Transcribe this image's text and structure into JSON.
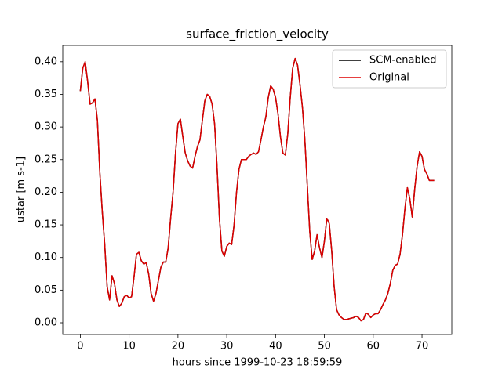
{
  "chart_data": {
    "type": "line",
    "title": "surface_friction_velocity",
    "xlabel": "hours since 1999-10-23 18:59:59",
    "ylabel": "ustar [m s-1]",
    "x": [
      0,
      0.5,
      1,
      1.5,
      2,
      2.5,
      3,
      3.5,
      4,
      4.5,
      5,
      5.5,
      6,
      6.5,
      7,
      7.5,
      8,
      8.5,
      9,
      9.5,
      10,
      10.5,
      11,
      11.5,
      12,
      12.5,
      13,
      13.5,
      14,
      14.5,
      15,
      15.5,
      16,
      16.5,
      17,
      17.5,
      18,
      18.5,
      19,
      19.5,
      20,
      20.5,
      21,
      21.5,
      22,
      22.5,
      23,
      23.5,
      24,
      24.5,
      25,
      25.5,
      26,
      26.5,
      27,
      27.5,
      28,
      28.5,
      29,
      29.5,
      30,
      30.5,
      31,
      31.5,
      32,
      32.5,
      33,
      33.5,
      34,
      34.5,
      35,
      35.5,
      36,
      36.5,
      37,
      37.5,
      38,
      38.5,
      39,
      39.5,
      40,
      40.5,
      41,
      41.5,
      42,
      42.5,
      43,
      43.5,
      44,
      44.5,
      45,
      45.5,
      46,
      46.5,
      47,
      47.5,
      48,
      48.5,
      49,
      49.5,
      50,
      50.5,
      51,
      51.5,
      52,
      52.5,
      53,
      53.5,
      54,
      54.5,
      55,
      55.5,
      56,
      56.5,
      57,
      57.5,
      58,
      58.5,
      59,
      59.5,
      60,
      60.5,
      61,
      61.5,
      62,
      62.5,
      63,
      63.5,
      64,
      64.5,
      65,
      65.5,
      66,
      66.5,
      67,
      67.5,
      68,
      68.5,
      69,
      69.5,
      70,
      70.5,
      71,
      71.5,
      72,
      72.5
    ],
    "series": [
      {
        "name": "SCM-enabled",
        "color": "#000000",
        "values": [
          0.355,
          0.39,
          0.4,
          0.37,
          0.335,
          0.337,
          0.343,
          0.31,
          0.23,
          0.17,
          0.12,
          0.055,
          0.035,
          0.072,
          0.06,
          0.035,
          0.025,
          0.03,
          0.04,
          0.042,
          0.038,
          0.04,
          0.07,
          0.105,
          0.108,
          0.095,
          0.09,
          0.092,
          0.075,
          0.045,
          0.033,
          0.045,
          0.065,
          0.085,
          0.093,
          0.093,
          0.115,
          0.16,
          0.2,
          0.26,
          0.305,
          0.312,
          0.285,
          0.26,
          0.248,
          0.24,
          0.237,
          0.255,
          0.27,
          0.28,
          0.31,
          0.34,
          0.35,
          0.347,
          0.335,
          0.305,
          0.24,
          0.16,
          0.11,
          0.102,
          0.117,
          0.122,
          0.12,
          0.15,
          0.2,
          0.235,
          0.25,
          0.25,
          0.25,
          0.255,
          0.258,
          0.26,
          0.258,
          0.262,
          0.28,
          0.3,
          0.315,
          0.345,
          0.363,
          0.358,
          0.345,
          0.32,
          0.285,
          0.26,
          0.257,
          0.29,
          0.345,
          0.39,
          0.405,
          0.395,
          0.365,
          0.33,
          0.28,
          0.21,
          0.14,
          0.097,
          0.11,
          0.135,
          0.115,
          0.1,
          0.125,
          0.16,
          0.152,
          0.11,
          0.055,
          0.02,
          0.012,
          0.008,
          0.005,
          0.005,
          0.006,
          0.007,
          0.008,
          0.01,
          0.008,
          0.003,
          0.005,
          0.015,
          0.013,
          0.008,
          0.012,
          0.014,
          0.014,
          0.02,
          0.028,
          0.035,
          0.045,
          0.06,
          0.08,
          0.088,
          0.09,
          0.105,
          0.135,
          0.175,
          0.207,
          0.19,
          0.162,
          0.205,
          0.24,
          0.262,
          0.255,
          0.235,
          0.228,
          0.218,
          0.218,
          0.218
        ]
      },
      {
        "name": "Original",
        "color": "#dd0000",
        "values": [
          0.355,
          0.39,
          0.4,
          0.37,
          0.335,
          0.337,
          0.343,
          0.31,
          0.23,
          0.17,
          0.12,
          0.055,
          0.035,
          0.072,
          0.06,
          0.035,
          0.025,
          0.03,
          0.04,
          0.042,
          0.038,
          0.04,
          0.07,
          0.105,
          0.108,
          0.095,
          0.09,
          0.092,
          0.075,
          0.045,
          0.033,
          0.045,
          0.065,
          0.085,
          0.093,
          0.093,
          0.115,
          0.16,
          0.2,
          0.26,
          0.305,
          0.312,
          0.285,
          0.26,
          0.248,
          0.24,
          0.237,
          0.255,
          0.27,
          0.28,
          0.31,
          0.34,
          0.35,
          0.347,
          0.335,
          0.305,
          0.24,
          0.16,
          0.11,
          0.102,
          0.117,
          0.122,
          0.12,
          0.15,
          0.2,
          0.235,
          0.25,
          0.25,
          0.25,
          0.255,
          0.258,
          0.26,
          0.258,
          0.262,
          0.28,
          0.3,
          0.315,
          0.345,
          0.363,
          0.358,
          0.345,
          0.32,
          0.285,
          0.26,
          0.257,
          0.29,
          0.345,
          0.39,
          0.405,
          0.395,
          0.365,
          0.33,
          0.28,
          0.21,
          0.14,
          0.097,
          0.11,
          0.135,
          0.115,
          0.1,
          0.125,
          0.16,
          0.152,
          0.11,
          0.055,
          0.02,
          0.012,
          0.008,
          0.005,
          0.005,
          0.006,
          0.007,
          0.008,
          0.01,
          0.008,
          0.003,
          0.005,
          0.015,
          0.013,
          0.008,
          0.012,
          0.014,
          0.014,
          0.02,
          0.028,
          0.035,
          0.045,
          0.06,
          0.08,
          0.088,
          0.09,
          0.105,
          0.135,
          0.175,
          0.207,
          0.19,
          0.162,
          0.205,
          0.24,
          0.262,
          0.255,
          0.235,
          0.228,
          0.218,
          0.218,
          0.218
        ]
      }
    ],
    "xlim": [
      -3.6,
      76.1
    ],
    "xticks": [
      0,
      10,
      20,
      30,
      40,
      50,
      60,
      70
    ],
    "ylim": [
      -0.018,
      0.425
    ],
    "yticks": [
      {
        "value": 0,
        "label": "0.00"
      },
      0.05,
      {
        "value": 0.1,
        "label": "0.10"
      },
      0.15,
      {
        "value": 0.2,
        "label": "0.20"
      },
      0.25,
      {
        "value": 0.3,
        "label": "0.30"
      },
      0.35,
      {
        "value": 0.4,
        "label": "0.40"
      }
    ],
    "grid": false,
    "legend": "upper right"
  }
}
